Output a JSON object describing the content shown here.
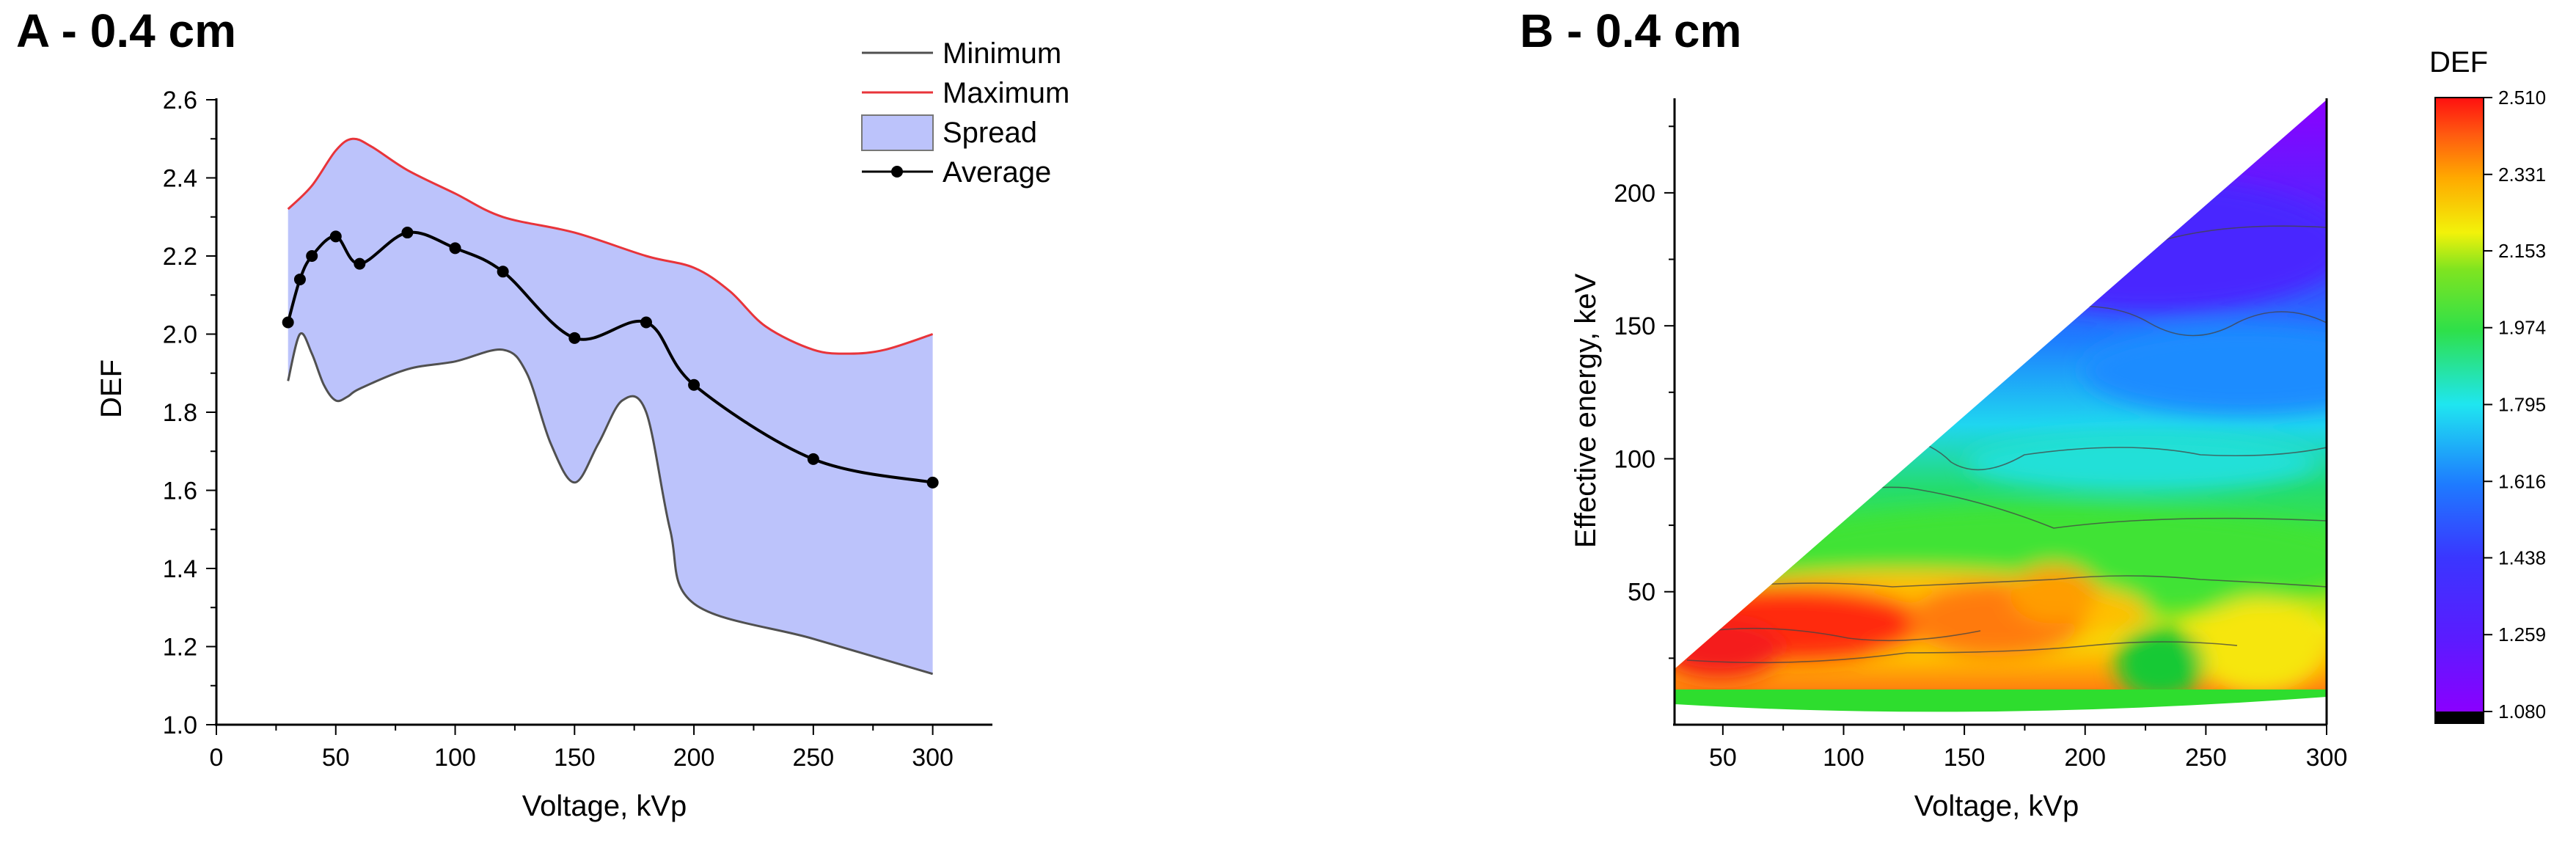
{
  "chart_data": [
    {
      "panel": "A",
      "type": "line",
      "title": "A - 0.4 cm",
      "xlabel": "Voltage, kVp",
      "ylabel": "DEF",
      "xlim": [
        0,
        325
      ],
      "ylim": [
        1.0,
        2.6
      ],
      "xticks": [
        0,
        50,
        100,
        150,
        200,
        250,
        300
      ],
      "yticks": [
        1.0,
        1.2,
        1.4,
        1.6,
        1.8,
        2.0,
        2.2,
        2.4,
        2.6
      ],
      "x_tick_labels": [
        "0",
        "50",
        "100",
        "150",
        "200",
        "250",
        "300"
      ],
      "y_tick_labels": [
        "1.0",
        "1.2",
        "1.4",
        "1.6",
        "1.8",
        "2.0",
        "2.2",
        "2.4",
        "2.6"
      ],
      "legend": {
        "position": "top-right",
        "entries": [
          {
            "label": "Minimum",
            "color": "#505050"
          },
          {
            "label": "Maximum",
            "color": "#e8343a"
          },
          {
            "label": "Spread",
            "color": "#bcc3fb"
          },
          {
            "label": "Average",
            "color": "#000000"
          }
        ]
      },
      "series": [
        {
          "name": "Minimum",
          "x": [
            30,
            35,
            40,
            45,
            50,
            55,
            60,
            80,
            100,
            120,
            130,
            140,
            150,
            160,
            170,
            180,
            190,
            200,
            250,
            300
          ],
          "values": [
            1.88,
            2.0,
            1.95,
            1.87,
            1.83,
            1.84,
            1.86,
            1.91,
            1.93,
            1.96,
            1.9,
            1.72,
            1.62,
            1.72,
            1.83,
            1.8,
            1.5,
            1.31,
            1.22,
            1.13
          ]
        },
        {
          "name": "Maximum",
          "x": [
            30,
            40,
            50,
            57,
            65,
            80,
            100,
            120,
            150,
            180,
            200,
            215,
            230,
            250,
            265,
            280,
            300
          ],
          "values": [
            2.32,
            2.38,
            2.47,
            2.5,
            2.48,
            2.42,
            2.36,
            2.3,
            2.26,
            2.2,
            2.17,
            2.11,
            2.02,
            1.96,
            1.95,
            1.96,
            2.0
          ]
        },
        {
          "name": "Average",
          "x": [
            30,
            35,
            40,
            50,
            60,
            80,
            100,
            120,
            150,
            180,
            200,
            250,
            300
          ],
          "values": [
            2.03,
            2.14,
            2.2,
            2.25,
            2.18,
            2.26,
            2.22,
            2.16,
            1.99,
            2.03,
            1.87,
            1.68,
            1.62
          ]
        }
      ]
    },
    {
      "panel": "B",
      "type": "heatmap",
      "title": "B - 0.4 cm",
      "xlabel": "Voltage, kVp",
      "ylabel": "Effective energy, keV",
      "xlim": [
        30,
        300
      ],
      "ylim": [
        0,
        235
      ],
      "xticks": [
        50,
        100,
        150,
        200,
        250,
        300
      ],
      "yticks": [
        50,
        100,
        150,
        200
      ],
      "x_tick_labels": [
        "50",
        "100",
        "150",
        "200",
        "250",
        "300"
      ],
      "y_tick_labels": [
        "50",
        "100",
        "150",
        "200"
      ],
      "colorbar": {
        "title": "DEF",
        "min": 1.08,
        "max": 2.51,
        "ticks": [
          2.51,
          2.331,
          2.153,
          1.974,
          1.795,
          1.616,
          1.438,
          1.259,
          1.08
        ],
        "tick_labels": [
          "2.510",
          "2.331",
          "2.153",
          "1.974",
          "1.795",
          "1.616",
          "1.438",
          "1.259",
          "1.080"
        ]
      }
    }
  ]
}
